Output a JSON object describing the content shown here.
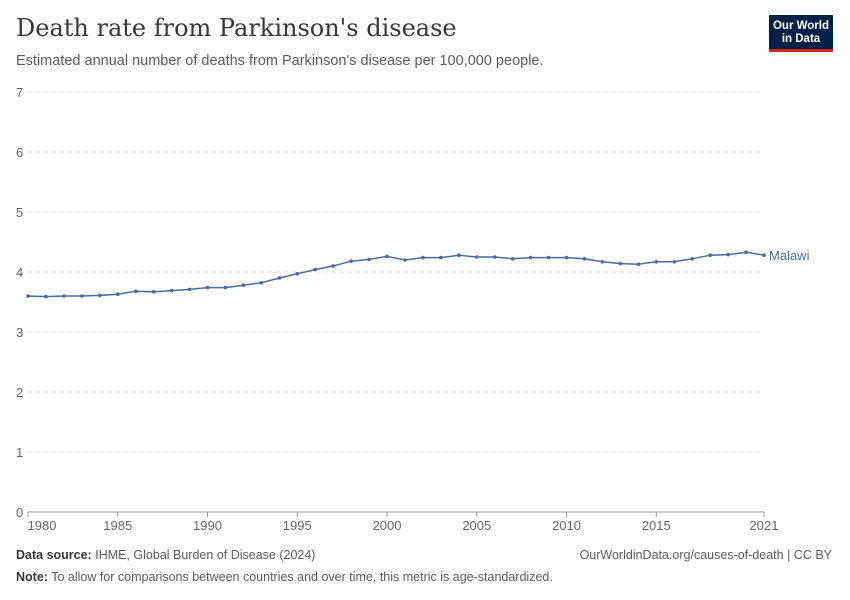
{
  "title": "Death rate from Parkinson's disease",
  "subtitle": "Estimated annual number of deaths from Parkinson's disease per 100,000 people.",
  "logo": "Our World in Data",
  "footer": {
    "source_label": "Data source:",
    "source": "IHME, Global Burden of Disease (2024)",
    "url": "OurWorldinData.org/causes-of-death | CC BY",
    "note_label": "Note:",
    "note": "To allow for comparisons between countries and over time, this metric is age-standardized."
  },
  "chart_data": {
    "type": "line",
    "ylim": [
      0,
      7
    ],
    "xlim": [
      1980,
      2021
    ],
    "yticks": [
      "0",
      "1",
      "2",
      "3",
      "4",
      "5",
      "6",
      "7"
    ],
    "xticks": [
      "1980",
      "1985",
      "1990",
      "1995",
      "2000",
      "2005",
      "2010",
      "2015",
      "2021"
    ],
    "grid": true,
    "color": "#4c6a9c",
    "series": [
      {
        "name": "Malawi",
        "x": [
          1980,
          1981,
          1982,
          1983,
          1984,
          1985,
          1986,
          1987,
          1988,
          1989,
          1990,
          1991,
          1992,
          1993,
          1994,
          1995,
          1996,
          1997,
          1998,
          1999,
          2000,
          2001,
          2002,
          2003,
          2004,
          2005,
          2006,
          2007,
          2008,
          2009,
          2010,
          2011,
          2012,
          2013,
          2014,
          2015,
          2016,
          2017,
          2018,
          2019,
          2020,
          2021
        ],
        "y": [
          3.6,
          3.59,
          3.6,
          3.6,
          3.61,
          3.63,
          3.68,
          3.67,
          3.69,
          3.71,
          3.74,
          3.74,
          3.78,
          3.82,
          3.9,
          3.97,
          4.04,
          4.1,
          4.18,
          4.21,
          4.26,
          4.2,
          4.24,
          4.24,
          4.28,
          4.25,
          4.25,
          4.22,
          4.24,
          4.24,
          4.24,
          4.22,
          4.17,
          4.14,
          4.13,
          4.17,
          4.17,
          4.22,
          4.28,
          4.29,
          4.33,
          4.28
        ]
      }
    ]
  }
}
